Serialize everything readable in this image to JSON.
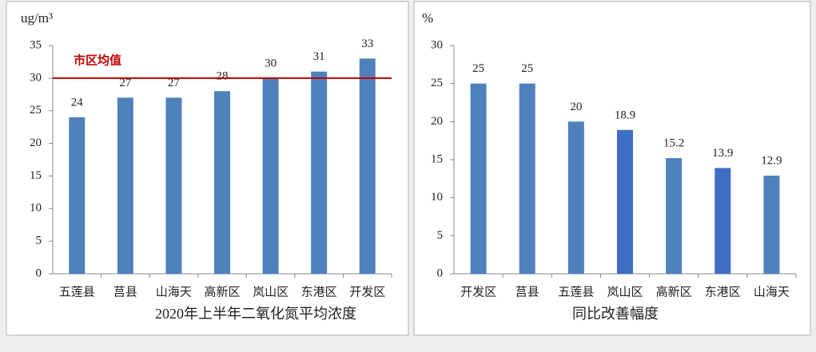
{
  "chart_data": [
    {
      "type": "bar",
      "title": "2020年上半年二氧化氮平均浓度",
      "y_label": "ug/m³",
      "categories": [
        "五莲县",
        "莒县",
        "山海天",
        "高新区",
        "岚山区",
        "东港区",
        "开发区"
      ],
      "values": [
        24,
        27,
        27,
        28,
        30,
        31,
        33
      ],
      "colors": [
        "#4f81bd",
        "#4f81bd",
        "#4f81bd",
        "#4f81bd",
        "#4f81bd",
        "#4f81bd",
        "#4f81bd"
      ],
      "ylim": [
        0,
        35
      ],
      "yticks": [
        0,
        5,
        10,
        15,
        20,
        25,
        30,
        35
      ],
      "reference_line": {
        "value": 30,
        "label": "市区均值",
        "color": "#c00000"
      }
    },
    {
      "type": "bar",
      "title": "同比改善幅度",
      "y_label": "%",
      "categories": [
        "开发区",
        "莒县",
        "五莲县",
        "岚山区",
        "高新区",
        "东港区",
        "山海天"
      ],
      "values": [
        25,
        25,
        20,
        18.9,
        15.2,
        13.9,
        12.9
      ],
      "colors": [
        "#4f81bd",
        "#4f81bd",
        "#4f81bd",
        "#3f6ec4",
        "#4f81bd",
        "#3f6ec4",
        "#4f81bd"
      ],
      "ylim": [
        0,
        30
      ],
      "yticks": [
        0,
        5,
        10,
        15,
        20,
        25,
        30
      ]
    }
  ]
}
